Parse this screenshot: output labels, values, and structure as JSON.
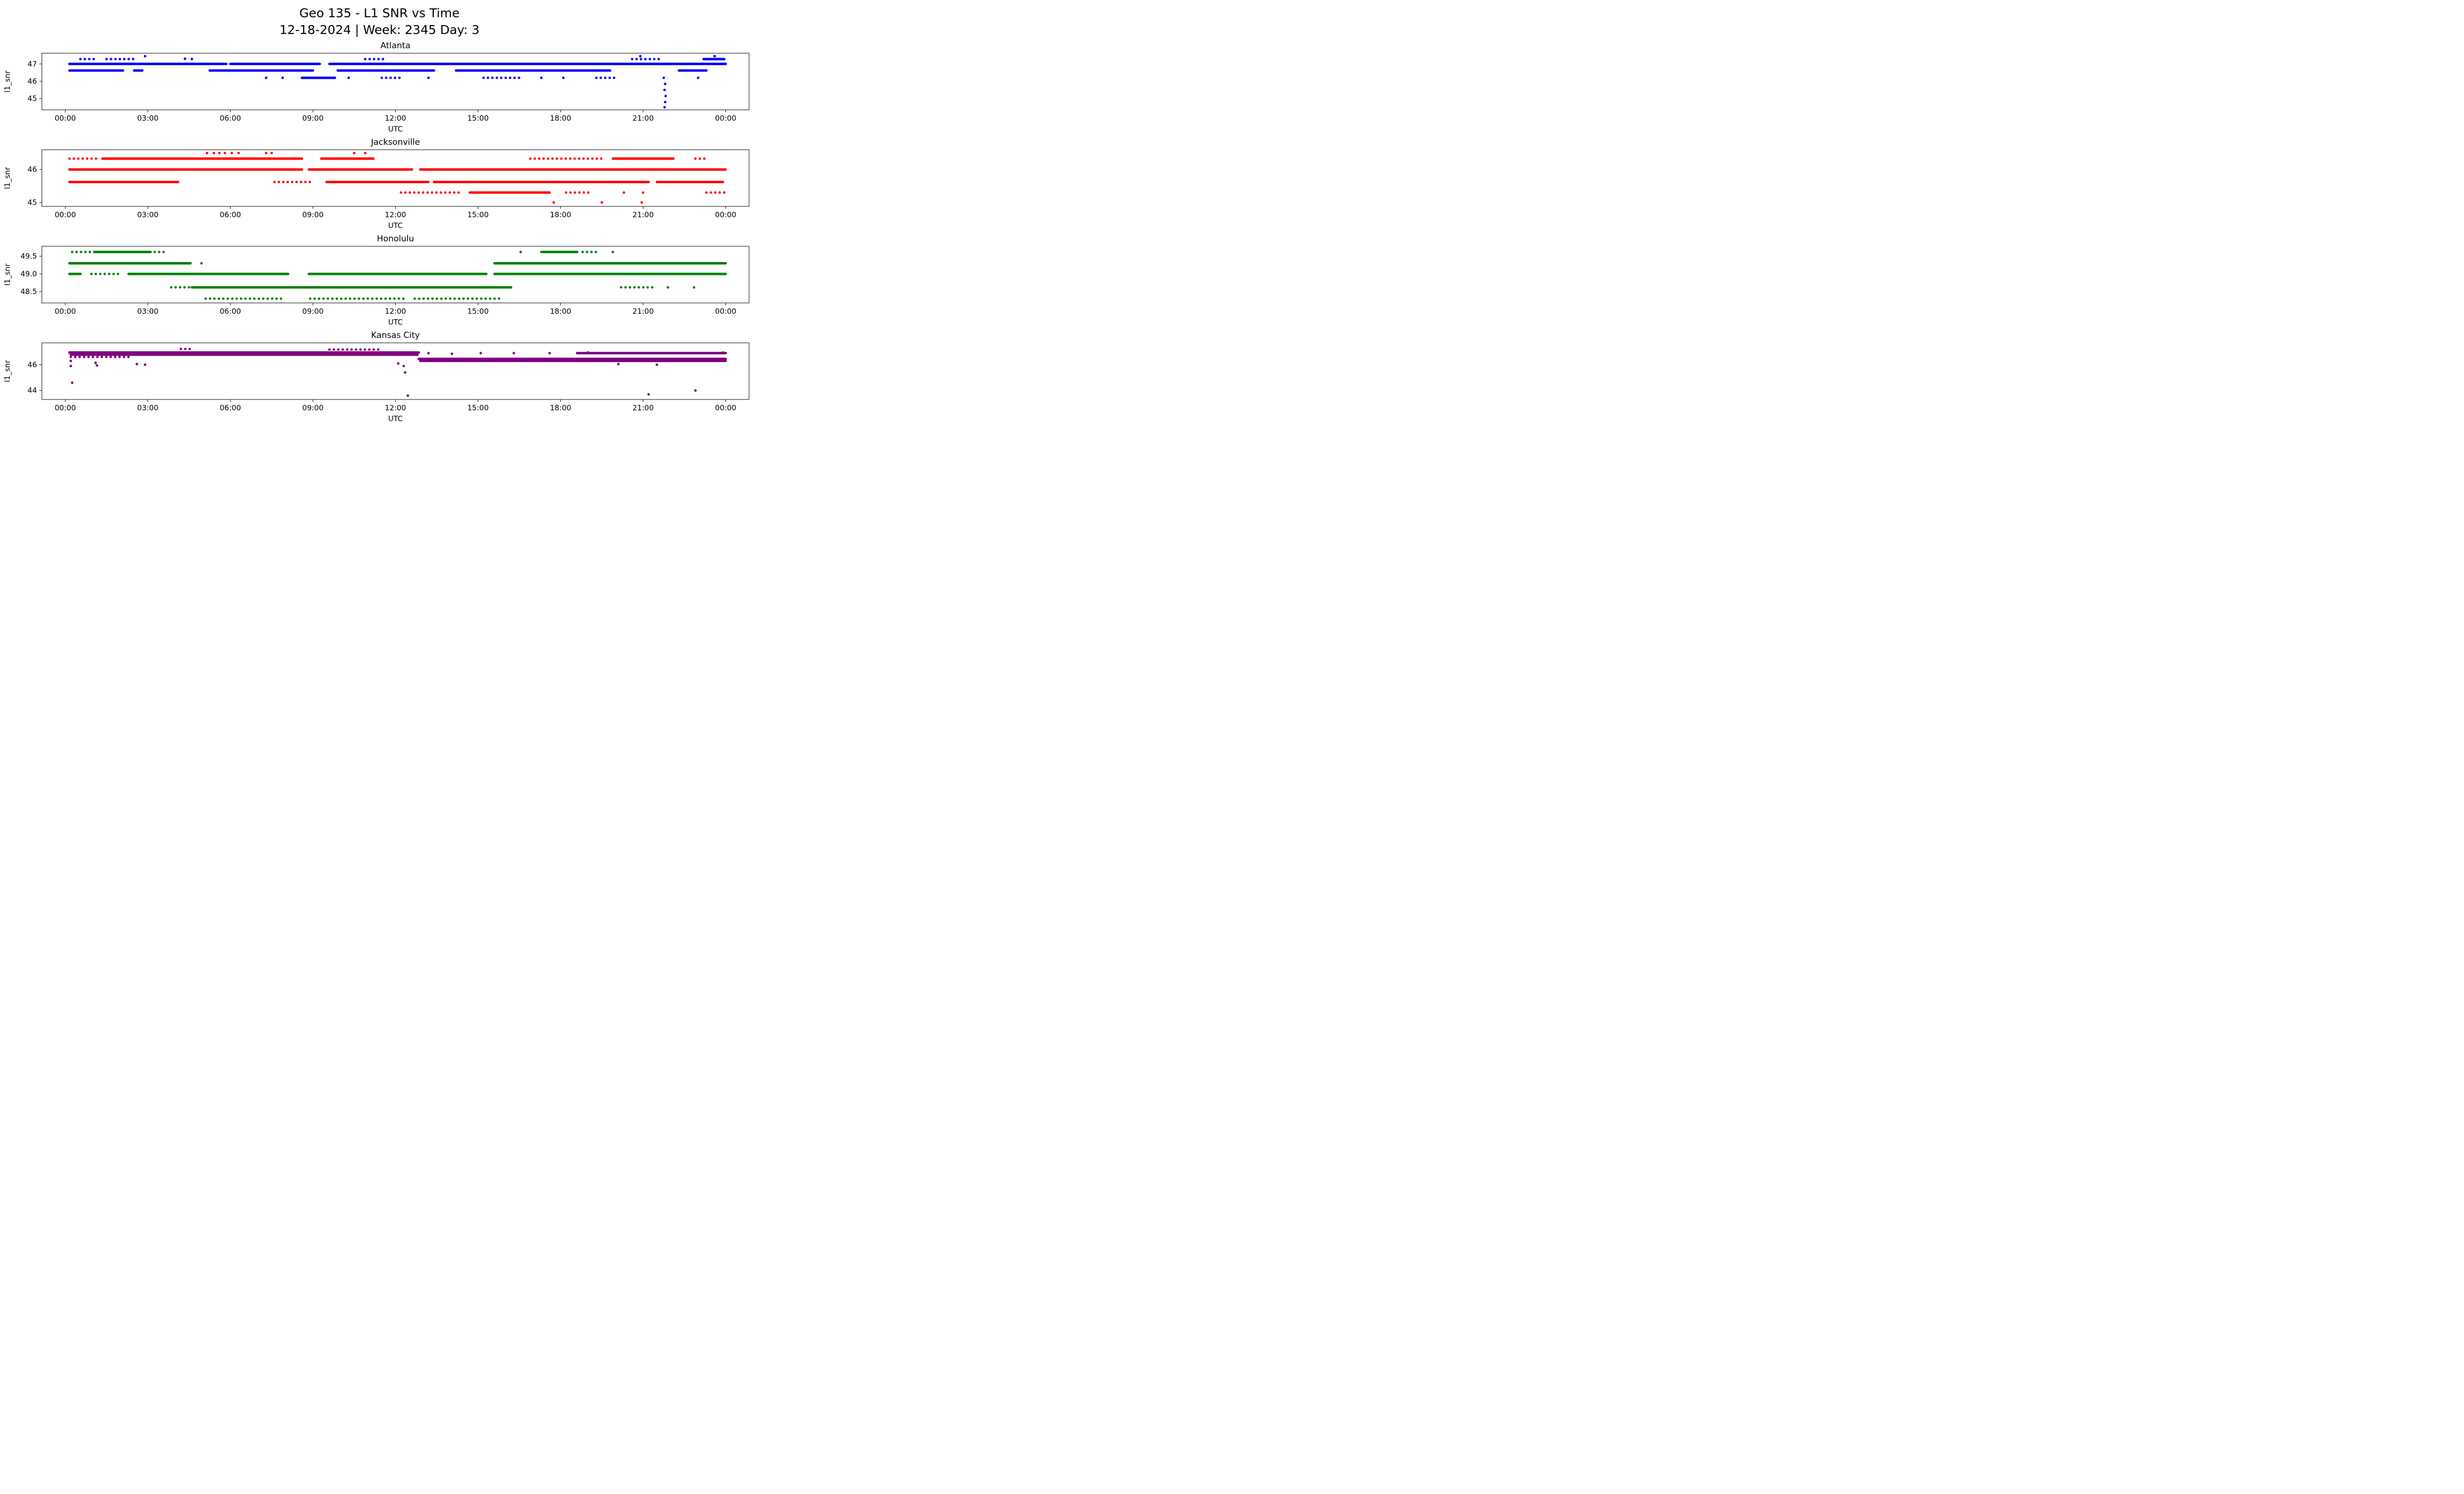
{
  "figure": {
    "title_line1": "Geo 135 - L1 SNR vs Time",
    "title_line2": "12-18-2024 | Week: 2345 Day: 3"
  },
  "chart_data": [
    {
      "type": "scatter",
      "title": "Atlanta",
      "color": "#0000ff",
      "xlabel": "UTC",
      "ylabel": "l1_snr",
      "xlim": [
        -0.85,
        24.85
      ],
      "ylim": [
        44.35,
        47.62
      ],
      "xticks": [
        0,
        3,
        6,
        9,
        12,
        15,
        18,
        21,
        24
      ],
      "xtick_labels": [
        "00:00",
        "03:00",
        "06:00",
        "09:00",
        "12:00",
        "15:00",
        "18:00",
        "21:00",
        "00:00"
      ],
      "yticks": [
        45,
        46,
        47
      ],
      "ytick_labels": [
        "45",
        "46",
        "47"
      ],
      "bands": [
        [
          47.0,
          0.15,
          5.85,
          "s"
        ],
        [
          47.0,
          6.0,
          9.25,
          "s"
        ],
        [
          47.0,
          9.6,
          24.0,
          "s"
        ],
        [
          46.62,
          0.15,
          2.1,
          "s"
        ],
        [
          46.62,
          2.5,
          2.8,
          "s"
        ],
        [
          46.62,
          5.25,
          9.0,
          "s"
        ],
        [
          46.62,
          9.9,
          13.4,
          "s"
        ],
        [
          46.62,
          14.2,
          19.8,
          "s"
        ],
        [
          46.62,
          22.3,
          23.3,
          "s"
        ],
        [
          47.28,
          0.55,
          1.15,
          "d"
        ],
        [
          47.28,
          1.5,
          2.5,
          "d"
        ],
        [
          47.28,
          10.9,
          11.6,
          "d"
        ],
        [
          47.28,
          20.6,
          21.7,
          "d"
        ],
        [
          47.28,
          23.2,
          23.95,
          "s"
        ],
        [
          46.2,
          8.6,
          9.8,
          "s"
        ],
        [
          46.2,
          15.2,
          16.6,
          "d"
        ],
        [
          46.2,
          19.3,
          20.1,
          "d"
        ],
        [
          46.2,
          11.5,
          12.3,
          "d"
        ]
      ],
      "points": [
        [
          2.9,
          47.45
        ],
        [
          4.35,
          47.3
        ],
        [
          4.6,
          47.28
        ],
        [
          7.3,
          46.2
        ],
        [
          7.9,
          46.2
        ],
        [
          10.3,
          46.2
        ],
        [
          13.2,
          46.2
        ],
        [
          17.3,
          46.2
        ],
        [
          18.1,
          46.2
        ],
        [
          23.0,
          46.2
        ],
        [
          20.9,
          47.45
        ],
        [
          23.6,
          47.45
        ],
        [
          21.75,
          46.2
        ],
        [
          21.8,
          45.85
        ],
        [
          21.78,
          45.5
        ],
        [
          21.82,
          45.15
        ],
        [
          21.8,
          44.8
        ],
        [
          21.78,
          44.5
        ]
      ]
    },
    {
      "type": "scatter",
      "title": "Jacksonville",
      "color": "#ff0000",
      "xlabel": "UTC",
      "ylabel": "l1_snr",
      "xlim": [
        -0.85,
        24.85
      ],
      "ylim": [
        44.88,
        46.6
      ],
      "xticks": [
        0,
        3,
        6,
        9,
        12,
        15,
        18,
        21,
        24
      ],
      "xtick_labels": [
        "00:00",
        "03:00",
        "06:00",
        "09:00",
        "12:00",
        "15:00",
        "18:00",
        "21:00",
        "00:00"
      ],
      "yticks": [
        45,
        46
      ],
      "ytick_labels": [
        "45",
        "46"
      ],
      "bands": [
        [
          46.0,
          0.15,
          8.6,
          "s"
        ],
        [
          46.0,
          8.85,
          12.6,
          "s"
        ],
        [
          46.0,
          12.9,
          24.0,
          "s"
        ],
        [
          46.33,
          0.15,
          1.25,
          "d"
        ],
        [
          46.33,
          1.35,
          8.6,
          "s"
        ],
        [
          46.33,
          9.3,
          11.2,
          "s"
        ],
        [
          46.33,
          16.9,
          19.6,
          "d"
        ],
        [
          46.33,
          19.9,
          22.1,
          "s"
        ],
        [
          46.33,
          22.9,
          23.3,
          "d"
        ],
        [
          45.62,
          0.15,
          4.1,
          "s"
        ],
        [
          45.62,
          7.6,
          9.0,
          "d"
        ],
        [
          45.62,
          9.5,
          13.2,
          "s"
        ],
        [
          45.62,
          13.4,
          21.2,
          "s"
        ],
        [
          45.62,
          21.5,
          23.9,
          "s"
        ],
        [
          45.3,
          12.2,
          14.4,
          "d"
        ],
        [
          45.3,
          14.7,
          17.6,
          "s"
        ],
        [
          45.3,
          18.2,
          19.1,
          "d"
        ],
        [
          45.3,
          23.3,
          24.0,
          "d"
        ]
      ],
      "points": [
        [
          5.15,
          46.5
        ],
        [
          5.4,
          46.5
        ],
        [
          5.6,
          46.5
        ],
        [
          5.8,
          46.5
        ],
        [
          6.05,
          46.5
        ],
        [
          6.3,
          46.5
        ],
        [
          7.3,
          46.5
        ],
        [
          7.5,
          46.5
        ],
        [
          10.5,
          46.5
        ],
        [
          10.9,
          46.5
        ],
        [
          17.75,
          45.0
        ],
        [
          19.5,
          45.0
        ],
        [
          20.95,
          45.0
        ],
        [
          20.3,
          45.3
        ],
        [
          21.0,
          45.3
        ]
      ]
    },
    {
      "type": "scatter",
      "title": "Honolulu",
      "color": "#008000",
      "xlabel": "UTC",
      "ylabel": "l1_snr",
      "xlim": [
        -0.85,
        24.85
      ],
      "ylim": [
        48.18,
        49.78
      ],
      "xticks": [
        0,
        3,
        6,
        9,
        12,
        15,
        18,
        21,
        24
      ],
      "xtick_labels": [
        "00:00",
        "03:00",
        "06:00",
        "09:00",
        "12:00",
        "15:00",
        "18:00",
        "21:00",
        "00:00"
      ],
      "yticks": [
        48.5,
        49.0,
        49.5
      ],
      "ytick_labels": [
        "48.5",
        "49.0",
        "49.5"
      ],
      "bands": [
        [
          49.62,
          0.25,
          0.95,
          "d"
        ],
        [
          49.62,
          1.05,
          3.1,
          "s"
        ],
        [
          49.62,
          3.25,
          3.6,
          "d"
        ],
        [
          49.62,
          17.3,
          18.6,
          "s"
        ],
        [
          49.62,
          18.8,
          19.4,
          "d"
        ],
        [
          49.3,
          0.15,
          4.55,
          "s"
        ],
        [
          49.3,
          15.6,
          24.0,
          "s"
        ],
        [
          49.0,
          0.15,
          0.55,
          "s"
        ],
        [
          49.0,
          0.95,
          2.0,
          "d"
        ],
        [
          49.0,
          2.3,
          8.1,
          "s"
        ],
        [
          49.0,
          8.85,
          15.3,
          "s"
        ],
        [
          49.0,
          15.6,
          24.0,
          "s"
        ],
        [
          48.62,
          3.85,
          4.55,
          "d"
        ],
        [
          48.62,
          4.6,
          16.2,
          "s"
        ],
        [
          48.62,
          20.2,
          21.4,
          "d"
        ],
        [
          48.3,
          5.1,
          7.9,
          "d"
        ],
        [
          48.3,
          8.9,
          12.4,
          "d"
        ],
        [
          48.3,
          12.7,
          15.9,
          "d"
        ]
      ],
      "points": [
        [
          16.55,
          49.62
        ],
        [
          19.9,
          49.62
        ],
        [
          4.95,
          49.3
        ],
        [
          7.85,
          49.0
        ],
        [
          21.9,
          48.62
        ],
        [
          22.85,
          48.62
        ]
      ]
    },
    {
      "type": "scatter",
      "title": "Kansas City",
      "color": "#800080",
      "xlabel": "UTC",
      "ylabel": "l1_snr",
      "xlim": [
        -0.85,
        24.85
      ],
      "ylim": [
        43.3,
        47.7
      ],
      "xticks": [
        0,
        3,
        6,
        9,
        12,
        15,
        18,
        21,
        24
      ],
      "xtick_labels": [
        "00:00",
        "03:00",
        "06:00",
        "09:00",
        "12:00",
        "15:00",
        "18:00",
        "21:00",
        "00:00"
      ],
      "yticks": [
        44,
        46
      ],
      "ytick_labels": [
        "44",
        "46"
      ],
      "bands": [
        [
          46.95,
          0.15,
          12.85,
          "s"
        ],
        [
          46.78,
          0.2,
          12.8,
          "s"
        ],
        [
          46.6,
          0.2,
          2.3,
          "d"
        ],
        [
          47.22,
          4.2,
          4.65,
          "d"
        ],
        [
          47.18,
          9.6,
          11.4,
          "d"
        ],
        [
          46.45,
          12.85,
          24.0,
          "s"
        ],
        [
          46.3,
          12.9,
          24.0,
          "s"
        ],
        [
          46.9,
          18.6,
          24.0,
          "s"
        ]
      ],
      "points": [
        [
          0.2,
          46.3
        ],
        [
          0.2,
          45.9
        ],
        [
          0.25,
          44.6
        ],
        [
          1.1,
          46.15
        ],
        [
          1.15,
          45.95
        ],
        [
          2.6,
          46.05
        ],
        [
          2.9,
          46.0
        ],
        [
          12.1,
          46.1
        ],
        [
          12.3,
          45.9
        ],
        [
          12.35,
          45.4
        ],
        [
          12.45,
          43.6
        ],
        [
          13.2,
          46.9
        ],
        [
          14.05,
          46.85
        ],
        [
          15.1,
          46.9
        ],
        [
          16.3,
          46.9
        ],
        [
          17.6,
          46.9
        ],
        [
          19.0,
          46.95
        ],
        [
          21.2,
          43.7
        ],
        [
          22.9,
          44.0
        ],
        [
          20.1,
          46.05
        ],
        [
          21.5,
          46.0
        ],
        [
          23.9,
          46.95
        ]
      ]
    }
  ]
}
